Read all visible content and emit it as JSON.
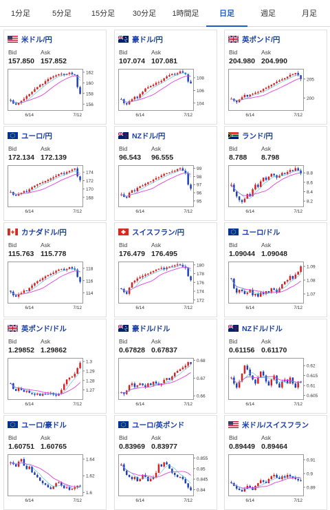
{
  "tabs": [
    {
      "label": "1分足",
      "active": false
    },
    {
      "label": "5分足",
      "active": false
    },
    {
      "label": "15分足",
      "active": false
    },
    {
      "label": "30分足",
      "active": false
    },
    {
      "label": "1時間足",
      "active": false
    },
    {
      "label": "日足",
      "active": true
    },
    {
      "label": "週足",
      "active": false
    },
    {
      "label": "月足",
      "active": false
    }
  ],
  "labels": {
    "bid": "Bid",
    "ask": "Ask"
  },
  "colors": {
    "up": "#d81e1e",
    "down": "#1c3fbf",
    "ma_short": "#e040e0",
    "ma_long": "#40b0e0",
    "accent": "#1a5dc8"
  },
  "cards": [
    {
      "pair": "米ドル/円",
      "flag": "us-flag-icon",
      "bid": "157.850",
      "ask": "157.852",
      "x_labels": [
        "6/14",
        "7/12"
      ],
      "chart_data": {
        "type": "line",
        "title": "",
        "ylim": [
          155,
          162.5
        ],
        "y_ticks": [
          "162",
          "160",
          "158",
          "156"
        ],
        "y_tick_values": [
          162,
          160,
          158,
          156
        ],
        "close": [
          156.7,
          156.1,
          155.9,
          156.2,
          156.6,
          157.0,
          157.5,
          157.9,
          158.3,
          158.8,
          159.2,
          159.6,
          159.8,
          160.3,
          160.7,
          161.0,
          161.2,
          161.4,
          161.6,
          161.7,
          161.5,
          161.7,
          161.9,
          161.6,
          161.5,
          159.2,
          157.9
        ]
      }
    },
    {
      "pair": "豪ドル/円",
      "flag": "au-flag-icon",
      "bid": "107.074",
      "ask": "107.081",
      "x_labels": [
        "6/14",
        "7/12"
      ],
      "chart_data": {
        "type": "line",
        "title": "",
        "ylim": [
          103,
          109.3
        ],
        "y_ticks": [
          "108",
          "106",
          "104"
        ],
        "y_tick_values": [
          108,
          106,
          104
        ],
        "close": [
          104.6,
          104.0,
          103.8,
          104.3,
          104.6,
          105.0,
          104.8,
          105.4,
          105.8,
          106.3,
          106.5,
          106.7,
          106.9,
          107.2,
          107.3,
          107.5,
          107.9,
          108.2,
          108.4,
          108.6,
          108.5,
          108.7,
          109.0,
          108.8,
          108.6,
          107.4,
          107.1
        ]
      }
    },
    {
      "pair": "英ポンド/円",
      "flag": "gb-flag-icon",
      "bid": "204.980",
      "ask": "204.990",
      "x_labels": [
        "6/14",
        "7/12"
      ],
      "chart_data": {
        "type": "line",
        "title": "",
        "ylim": [
          197,
          207.5
        ],
        "y_ticks": [
          "205",
          "200"
        ],
        "y_tick_values": [
          205,
          200
        ],
        "close": [
          199.8,
          199.3,
          198.9,
          199.6,
          200.2,
          200.8,
          200.4,
          200.9,
          201.1,
          201.4,
          201.6,
          201.9,
          202.4,
          202.7,
          203.1,
          203.5,
          203.9,
          204.3,
          204.6,
          204.9,
          205.2,
          205.6,
          206.1,
          206.3,
          206.6,
          206.0,
          204.98
        ]
      }
    },
    {
      "pair": "ユーロ/円",
      "flag": "eu-flag-icon",
      "bid": "172.134",
      "ask": "172.139",
      "x_labels": [
        "6/14",
        "7/12"
      ],
      "chart_data": {
        "type": "line",
        "title": "",
        "ylim": [
          166,
          175.5
        ],
        "y_ticks": [
          "174",
          "172",
          "170",
          "168"
        ],
        "y_tick_values": [
          174,
          172,
          170,
          168
        ],
        "close": [
          169.3,
          168.6,
          168.4,
          168.8,
          169.1,
          169.5,
          169.3,
          169.9,
          170.4,
          170.8,
          171.1,
          171.4,
          171.6,
          171.9,
          172.2,
          172.5,
          172.8,
          173.1,
          173.5,
          173.8,
          173.6,
          174.0,
          174.3,
          174.6,
          174.9,
          173.0,
          172.1
        ]
      }
    },
    {
      "pair": "NZドル/円",
      "flag": "nz-flag-icon",
      "bid": "96.543",
      "ask": "96.555",
      "x_labels": [
        "6/14",
        "7/12"
      ],
      "chart_data": {
        "type": "line",
        "title": "",
        "ylim": [
          94.4,
          99.3
        ],
        "y_ticks": [
          "99",
          "98",
          "97",
          "96",
          "95"
        ],
        "y_tick_values": [
          99,
          98,
          97,
          96,
          95
        ],
        "close": [
          95.8,
          95.5,
          95.4,
          96.0,
          96.3,
          96.2,
          96.6,
          96.8,
          96.9,
          97.1,
          97.3,
          97.4,
          97.6,
          97.8,
          97.9,
          98.1,
          98.3,
          98.4,
          98.5,
          98.6,
          98.7,
          98.9,
          99.0,
          98.7,
          98.4,
          97.0,
          96.5
        ]
      }
    },
    {
      "pair": "ランド/円",
      "flag": "za-flag-icon",
      "bid": "8.788",
      "ask": "8.798",
      "x_labels": [
        "6/14",
        "7/12"
      ],
      "chart_data": {
        "type": "line",
        "title": "",
        "ylim": [
          8.1,
          8.95
        ],
        "y_ticks": [
          "8.8",
          "8.6",
          "8.4",
          "8.2"
        ],
        "y_tick_values": [
          8.8,
          8.6,
          8.4,
          8.2
        ],
        "close": [
          8.55,
          8.4,
          8.3,
          8.22,
          8.18,
          8.25,
          8.35,
          8.3,
          8.45,
          8.55,
          8.5,
          8.62,
          8.7,
          8.65,
          8.72,
          8.78,
          8.75,
          8.7,
          8.74,
          8.8,
          8.78,
          8.82,
          8.86,
          8.84,
          8.9,
          8.85,
          8.79
        ]
      }
    },
    {
      "pair": "カナダドル/円",
      "flag": "ca-flag-icon",
      "bid": "115.763",
      "ask": "115.778",
      "x_labels": [
        "6/14",
        "7/12"
      ],
      "chart_data": {
        "type": "line",
        "title": "",
        "ylim": [
          112.5,
          119
        ],
        "y_ticks": [
          "118",
          "116",
          "114"
        ],
        "y_tick_values": [
          118,
          116,
          114
        ],
        "close": [
          114.2,
          113.6,
          113.4,
          113.8,
          114.0,
          114.4,
          114.3,
          114.8,
          115.2,
          115.6,
          115.9,
          116.1,
          116.4,
          116.7,
          116.9,
          117.1,
          117.3,
          117.6,
          117.8,
          117.9,
          117.7,
          117.9,
          118.2,
          118.0,
          117.8,
          116.6,
          115.8
        ]
      }
    },
    {
      "pair": "スイスフラン/円",
      "flag": "ch-flag-icon",
      "bid": "176.479",
      "ask": "176.495",
      "x_labels": [
        "6/14",
        "7/12"
      ],
      "chart_data": {
        "type": "line",
        "title": "",
        "ylim": [
          171.5,
          180.6
        ],
        "y_ticks": [
          "180",
          "178",
          "176",
          "174",
          "172"
        ],
        "y_tick_values": [
          180,
          178,
          176,
          174,
          172
        ],
        "close": [
          174.5,
          173.8,
          173.4,
          174.8,
          176.0,
          176.4,
          176.9,
          177.2,
          177.5,
          177.8,
          178.0,
          178.3,
          178.6,
          178.9,
          179.1,
          179.3,
          179.0,
          179.4,
          179.6,
          179.7,
          179.9,
          180.1,
          180.0,
          179.6,
          179.3,
          177.4,
          176.5
        ]
      }
    },
    {
      "pair": "ユーロ/ドル",
      "flag": "eu-flag-icon",
      "bid": "1.09044",
      "ask": "1.09048",
      "x_labels": [
        "6/14",
        "7/12"
      ],
      "chart_data": {
        "type": "line",
        "title": "",
        "ylim": [
          1.064,
          1.093
        ],
        "y_ticks": [
          "1.09",
          "1.08",
          "1.07"
        ],
        "y_tick_values": [
          1.09,
          1.08,
          1.07
        ],
        "close": [
          1.081,
          1.074,
          1.071,
          1.073,
          1.072,
          1.07,
          1.071,
          1.073,
          1.069,
          1.07,
          1.068,
          1.071,
          1.07,
          1.072,
          1.071,
          1.074,
          1.073,
          1.071,
          1.074,
          1.077,
          1.079,
          1.08,
          1.083,
          1.081,
          1.084,
          1.086,
          1.09
        ]
      }
    },
    {
      "pair": "英ポンド/ドル",
      "flag": "gb-flag-icon",
      "bid": "1.29852",
      "ask": "1.29862",
      "x_labels": [
        "6/14",
        "7/12"
      ],
      "chart_data": {
        "type": "line",
        "title": "",
        "ylim": [
          1.261,
          1.303
        ],
        "y_ticks": [
          "1.3",
          "1.29",
          "1.28",
          "1.27"
        ],
        "y_tick_values": [
          1.3,
          1.29,
          1.28,
          1.27
        ],
        "close": [
          1.277,
          1.271,
          1.269,
          1.272,
          1.27,
          1.268,
          1.269,
          1.267,
          1.266,
          1.265,
          1.266,
          1.264,
          1.266,
          1.265,
          1.266,
          1.267,
          1.265,
          1.264,
          1.266,
          1.27,
          1.276,
          1.281,
          1.283,
          1.284,
          1.287,
          1.293,
          1.2985
        ]
      }
    },
    {
      "pair": "豪ドル/ドル",
      "flag": "au-flag-icon",
      "bid": "0.67828",
      "ask": "0.67837",
      "x_labels": [
        "6/14",
        "7/12"
      ],
      "chart_data": {
        "type": "line",
        "title": "",
        "ylim": [
          0.6585,
          0.681
        ],
        "y_ticks": [
          "0.68",
          "0.67",
          "0.66"
        ],
        "y_tick_values": [
          0.68,
          0.67,
          0.66
        ],
        "close": [
          0.662,
          0.661,
          0.663,
          0.666,
          0.667,
          0.665,
          0.666,
          0.667,
          0.666,
          0.665,
          0.667,
          0.666,
          0.668,
          0.667,
          0.666,
          0.667,
          0.669,
          0.67,
          0.669,
          0.671,
          0.673,
          0.674,
          0.675,
          0.676,
          0.677,
          0.679,
          0.678
        ]
      }
    },
    {
      "pair": "NZドル/ドル",
      "flag": "nz-flag-icon",
      "bid": "0.61156",
      "ask": "0.61170",
      "x_labels": [
        "6/14",
        "7/12"
      ],
      "chart_data": {
        "type": "line",
        "title": "",
        "ylim": [
          0.6035,
          0.6235
        ],
        "y_ticks": [
          "0.62",
          "0.615",
          "0.61",
          "0.605"
        ],
        "y_tick_values": [
          0.62,
          0.615,
          0.61,
          0.605
        ],
        "close": [
          0.614,
          0.611,
          0.609,
          0.612,
          0.616,
          0.62,
          0.618,
          0.615,
          0.613,
          0.611,
          0.614,
          0.617,
          0.615,
          0.612,
          0.61,
          0.613,
          0.615,
          0.611,
          0.609,
          0.612,
          0.613,
          0.611,
          0.614,
          0.611,
          0.609,
          0.612,
          0.6116
        ]
      }
    },
    {
      "pair": "ユーロ/豪ドル",
      "flag": "eu-flag-icon",
      "bid": "1.60751",
      "ask": "1.60765",
      "x_labels": [
        "6/14",
        "7/12"
      ],
      "chart_data": {
        "type": "line",
        "title": "",
        "ylim": [
          1.597,
          1.645
        ],
        "y_ticks": [
          "1.64",
          "1.62",
          "1.6"
        ],
        "y_tick_values": [
          1.64,
          1.62,
          1.6
        ],
        "close": [
          1.636,
          1.634,
          1.631,
          1.637,
          1.64,
          1.632,
          1.628,
          1.631,
          1.624,
          1.621,
          1.618,
          1.614,
          1.611,
          1.609,
          1.606,
          1.604,
          1.607,
          1.611,
          1.612,
          1.608,
          1.605,
          1.606,
          1.603,
          1.604,
          1.606,
          1.608,
          1.6075
        ]
      }
    },
    {
      "pair": "ユーロ/英ポンド",
      "flag": "eu-flag-icon",
      "bid": "0.83969",
      "ask": "0.83977",
      "x_labels": [
        "6/14",
        "7/12"
      ],
      "chart_data": {
        "type": "line",
        "title": "",
        "ylim": [
          0.8375,
          0.8565
        ],
        "y_ticks": [
          "0.855",
          "0.85",
          "0.845",
          "0.84"
        ],
        "y_tick_values": [
          0.855,
          0.85,
          0.845,
          0.84
        ],
        "close": [
          0.852,
          0.849,
          0.847,
          0.846,
          0.845,
          0.846,
          0.844,
          0.845,
          0.847,
          0.846,
          0.844,
          0.845,
          0.846,
          0.848,
          0.852,
          0.851,
          0.853,
          0.852,
          0.85,
          0.848,
          0.847,
          0.846,
          0.846,
          0.845,
          0.843,
          0.841,
          0.8397
        ]
      }
    },
    {
      "pair": "米ドル/スイスフラン",
      "flag": "us-flag-icon",
      "bid": "0.89449",
      "ask": "0.89464",
      "x_labels": [
        "6/14",
        "7/12"
      ],
      "chart_data": {
        "type": "line",
        "title": "",
        "ylim": [
          0.8845,
          0.9135
        ],
        "y_ticks": [
          "0.91",
          "0.9",
          "0.89"
        ],
        "y_tick_values": [
          0.91,
          0.9,
          0.89
        ],
        "close": [
          0.893,
          0.891,
          0.889,
          0.888,
          0.887,
          0.889,
          0.891,
          0.89,
          0.888,
          0.891,
          0.893,
          0.895,
          0.894,
          0.893,
          0.896,
          0.898,
          0.899,
          0.897,
          0.896,
          0.898,
          0.897,
          0.899,
          0.898,
          0.897,
          0.896,
          0.895,
          0.8945
        ]
      }
    }
  ]
}
